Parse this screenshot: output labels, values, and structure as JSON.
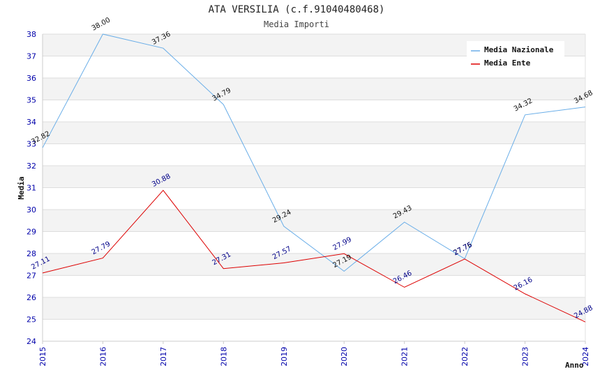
{
  "chart_data": {
    "type": "line",
    "title": "ATA VERSILIA (c.f.91040480468)",
    "subtitle": "Media Importi",
    "xlabel": "Anno",
    "ylabel": "Media",
    "x": [
      "2015",
      "2016",
      "2017",
      "2018",
      "2019",
      "2020",
      "2021",
      "2022",
      "2023",
      "2024"
    ],
    "ylim": [
      24,
      38
    ],
    "yticks": [
      "24",
      "25",
      "26",
      "27",
      "28",
      "29",
      "30",
      "31",
      "32",
      "33",
      "34",
      "35",
      "36",
      "37",
      "38"
    ],
    "grid": true,
    "legend_position": "top-right",
    "series": [
      {
        "name": "Media Nazionale",
        "color": "#6aaee8",
        "values": [
          32.82,
          38.0,
          37.36,
          34.79,
          29.24,
          27.19,
          29.43,
          27.76,
          34.32,
          34.68
        ],
        "labels": [
          "32.82",
          "38.00",
          "37.36",
          "34.79",
          "29.24",
          "27.19",
          "29.43",
          "27.76",
          "34.32",
          "34.68"
        ]
      },
      {
        "name": "Media Ente",
        "color": "#dd0000",
        "values": [
          27.11,
          27.79,
          30.88,
          27.31,
          27.57,
          27.99,
          26.46,
          27.75,
          26.16,
          24.88
        ],
        "labels": [
          "27.11",
          "27.79",
          "30.88",
          "27.31",
          "27.57",
          "27.99",
          "26.46",
          "27.75",
          "26.16",
          "24.88"
        ]
      }
    ]
  }
}
